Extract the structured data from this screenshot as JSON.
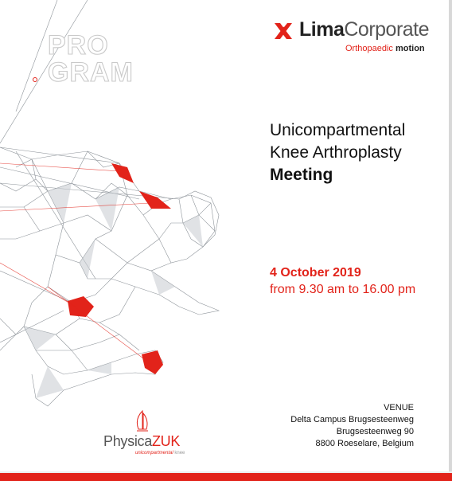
{
  "program": {
    "line1": "PRO",
    "line2": "GRAM"
  },
  "logo": {
    "brand_bold": "Lima",
    "brand_light": "Corporate",
    "tagline_prefix": "Orthopaedic ",
    "tagline_bold": "motion",
    "colors": {
      "accent": "#e2231a",
      "dark": "#222222",
      "gray": "#555555"
    }
  },
  "title": {
    "line1": "Unicompartmental",
    "line2": "Knee Arthroplasty",
    "line3": "Meeting"
  },
  "event": {
    "date": "4 October 2019",
    "time": "from 9.30 am to 16.00 pm"
  },
  "venue": {
    "heading": "VENUE",
    "line1": "Delta Campus Brugsesteenweg",
    "line2": "Brugsesteenweg 90",
    "line3": "8800 Roeselare, Belgium"
  },
  "sponsor": {
    "name_a": "Physica",
    "name_b": "ZUK",
    "sub_a": "unicompartmental",
    "sub_b": "knee"
  },
  "icons": {
    "logo_mark": "lima-x-logo-icon",
    "sail": "physica-sail-icon",
    "figure": "low-poly-runner-figure"
  }
}
